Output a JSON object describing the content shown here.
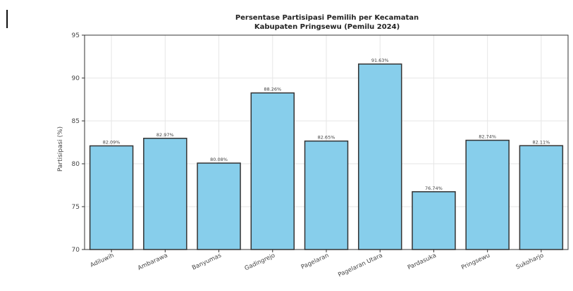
{
  "chart_data": {
    "type": "bar",
    "title": "Persentase Partisipasi Pemilih per Kecamatan",
    "subtitle": "Kabupaten Pringsewu (Pemilu 2024)",
    "xlabel": "",
    "ylabel": "Partisipasi (%)",
    "ylim": [
      70,
      95
    ],
    "yticks": [
      "70",
      "75",
      "80",
      "85",
      "90",
      "95"
    ],
    "categories": [
      "Adiluwih",
      "Ambarawa",
      "Banyumas",
      "Gadingrejo",
      "Pagelaran",
      "Pagelaran Utara",
      "Pardasuka",
      "Pringsewu",
      "Sukoharjo"
    ],
    "values": [
      82.09,
      82.97,
      80.08,
      88.26,
      82.65,
      91.63,
      76.74,
      82.74,
      82.11
    ],
    "data_labels": [
      "82.09%",
      "82.97%",
      "80.08%",
      "88.26%",
      "82.65%",
      "91.63%",
      "76.74%",
      "82.74%",
      "82.11%"
    ],
    "grid": true,
    "colors": {
      "bar_fill": "#87ceeb",
      "bar_edge": "#333333",
      "grid": "#e6e6e6"
    }
  }
}
